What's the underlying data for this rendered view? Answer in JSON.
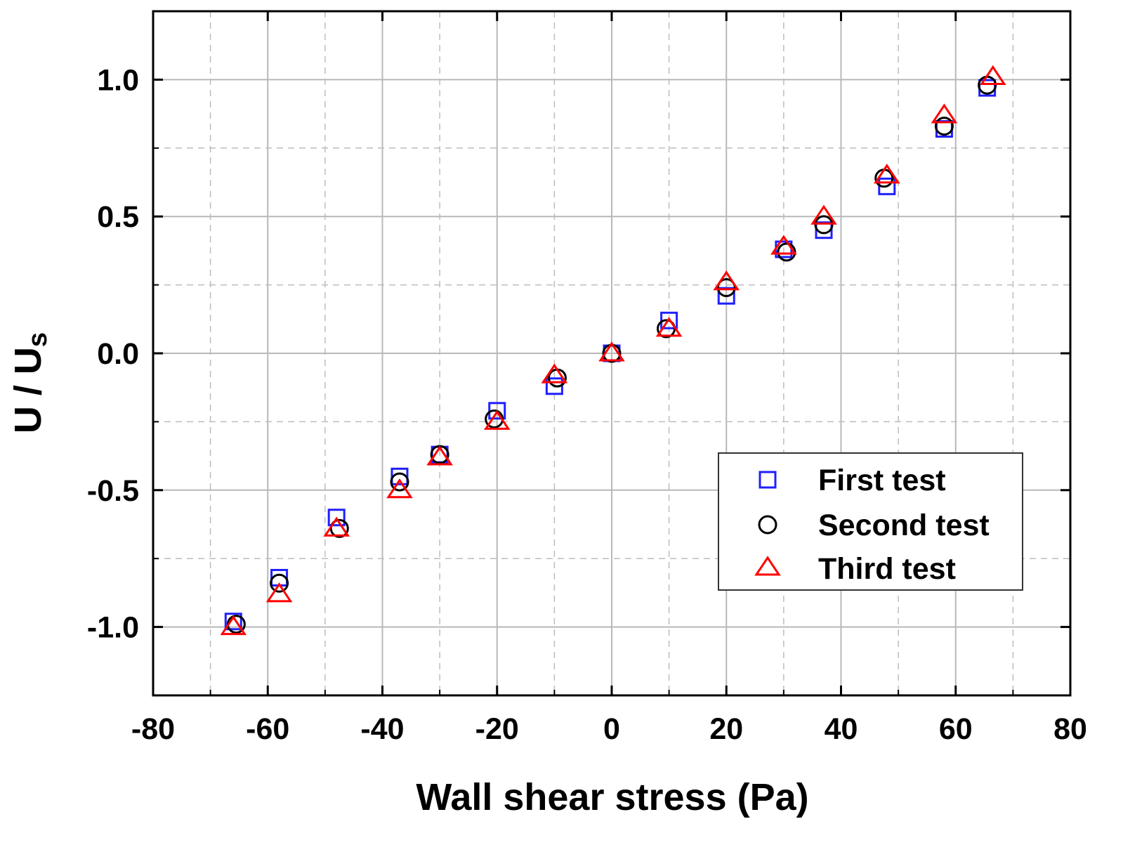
{
  "chart_data": {
    "type": "scatter",
    "title": "",
    "xlabel": "Wall shear stress (Pa)",
    "ylabel_main": "U / U",
    "ylabel_sub": "s",
    "xlim": [
      -80,
      80
    ],
    "ylim": [
      -1.25,
      1.25
    ],
    "x_ticks": [
      -80,
      -60,
      -40,
      -20,
      0,
      20,
      40,
      60,
      80
    ],
    "x_tick_labels": [
      "-80",
      "-60",
      "-40",
      "-20",
      "0",
      "20",
      "40",
      "60",
      "80"
    ],
    "y_ticks": [
      -1.0,
      -0.5,
      0.0,
      0.5,
      1.0
    ],
    "y_tick_labels": [
      "-1.0",
      "-0.5",
      "0.0",
      "0.5",
      "1.0"
    ],
    "grid": true,
    "legend_position": "bottom-right",
    "series": [
      {
        "name": "First test",
        "marker": "square",
        "color": "#1f1fff",
        "x": [
          -66,
          -58,
          -48,
          -37,
          -30,
          -20,
          -10,
          0,
          10,
          20,
          30,
          37,
          48,
          58,
          65.5
        ],
        "y": [
          -0.98,
          -0.82,
          -0.6,
          -0.45,
          -0.37,
          -0.21,
          -0.12,
          0.0,
          0.12,
          0.21,
          0.38,
          0.45,
          0.61,
          0.82,
          0.97
        ]
      },
      {
        "name": "Second test",
        "marker": "circle",
        "color": "#000000",
        "x": [
          -65.5,
          -58,
          -47.5,
          -37,
          -30,
          -20.5,
          -9.5,
          0,
          9.5,
          20,
          30.5,
          37,
          47.5,
          58,
          65.5
        ],
        "y": [
          -0.99,
          -0.84,
          -0.64,
          -0.47,
          -0.37,
          -0.24,
          -0.09,
          0.0,
          0.09,
          0.24,
          0.37,
          0.47,
          0.64,
          0.83,
          0.98
        ]
      },
      {
        "name": "Third test",
        "marker": "triangle",
        "color": "#ff0000",
        "x": [
          -66,
          -58,
          -48,
          -37,
          -30,
          -20,
          -10,
          0,
          10,
          20,
          30,
          37,
          48,
          58,
          66.5
        ],
        "y": [
          -1.0,
          -0.88,
          -0.64,
          -0.5,
          -0.38,
          -0.25,
          -0.08,
          0.0,
          0.09,
          0.26,
          0.39,
          0.5,
          0.65,
          0.87,
          1.01
        ]
      }
    ]
  }
}
